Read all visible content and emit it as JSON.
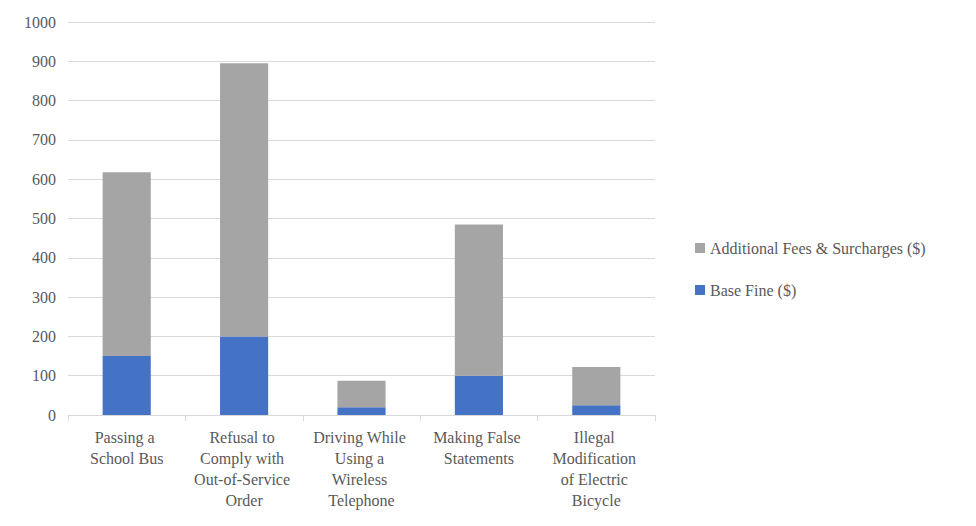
{
  "chart_data": {
    "type": "bar",
    "stacked": true,
    "grid": true,
    "legend": "right",
    "categories": [
      "Passing a School Bus",
      "Refusal to Comply with Out-of-Service Order",
      "Driving While Using a Wireless Telephone",
      "Making False Statements",
      "Illegal Modification of Electric Bicycle"
    ],
    "series": [
      {
        "name": "Base Fine ($)",
        "color": "#4472c4",
        "values": [
          150,
          200,
          20,
          100,
          25
        ]
      },
      {
        "name": "Additional Fees & Surcharges ($)",
        "color": "#a5a5a5",
        "values": [
          468,
          695,
          67,
          385,
          97
        ]
      }
    ],
    "ylim": [
      0,
      1000
    ],
    "yticks": [
      0,
      100,
      200,
      300,
      400,
      500,
      600,
      700,
      800,
      900,
      1000
    ]
  }
}
